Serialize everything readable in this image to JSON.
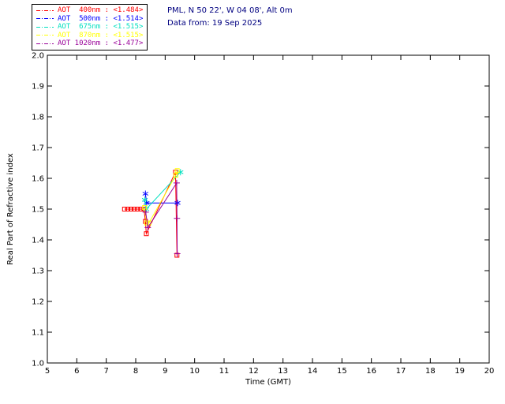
{
  "header": {
    "station_line": "PML, N 50 22', W 04 08', Alt 0m",
    "date_line": "Data from: 19 Sep 2025",
    "text_color": "#000080"
  },
  "chart_data": {
    "type": "scatter",
    "title": "",
    "xlabel": "Time (GMT)",
    "ylabel": "Real Part of Refractive index",
    "xlim": [
      5,
      20
    ],
    "ylim": [
      1.0,
      2.0
    ],
    "xticks": [
      5,
      6,
      7,
      8,
      9,
      10,
      11,
      12,
      13,
      14,
      15,
      16,
      17,
      18,
      19,
      20
    ],
    "ytick_labels": [
      "1.0",
      "1.1",
      "1.2",
      "1.3",
      "1.4",
      "1.5",
      "1.6",
      "1.7",
      "1.8",
      "1.9",
      "2.0"
    ],
    "grid": false,
    "legend_position": "outside-top-left",
    "axis_color": "#000000",
    "series": [
      {
        "name": "AOT 400nm",
        "mean_label": "<1.484>",
        "legend_label": "AOT  400nm : <1.484>",
        "color": "#ff0000",
        "marker": "square",
        "points": [
          [
            7.62,
            1.5
          ],
          [
            7.73,
            1.5
          ],
          [
            7.84,
            1.5
          ],
          [
            7.95,
            1.5
          ],
          [
            8.06,
            1.5
          ],
          [
            8.17,
            1.5
          ],
          [
            8.28,
            1.5
          ],
          [
            8.33,
            1.46
          ],
          [
            8.36,
            1.42
          ],
          [
            9.35,
            1.62
          ],
          [
            9.4,
            1.35
          ]
        ]
      },
      {
        "name": "AOT 500nm",
        "mean_label": "<1.514>",
        "legend_label": "AOT  500nm : <1.514>",
        "color": "#0000ff",
        "marker": "asterisk",
        "points": [
          [
            8.33,
            1.55
          ],
          [
            8.37,
            1.52
          ],
          [
            9.42,
            1.52
          ]
        ]
      },
      {
        "name": "AOT 675nm",
        "mean_label": "<1.515>",
        "legend_label": "AOT  675nm : <1.515>",
        "color": "#00e0c0",
        "marker": "asterisk",
        "points": [
          [
            8.31,
            1.53
          ],
          [
            8.36,
            1.5
          ],
          [
            9.52,
            1.62
          ]
        ]
      },
      {
        "name": "AOT 870nm",
        "mean_label": "<1.515>",
        "legend_label": "AOT  870nm : <1.515>",
        "color": "#ffff00",
        "marker": "square",
        "points": [
          [
            8.3,
            1.505
          ],
          [
            8.37,
            1.455
          ],
          [
            8.45,
            1.455
          ],
          [
            9.36,
            1.61
          ],
          [
            9.41,
            1.625
          ]
        ]
      },
      {
        "name": "AOT 1020nm",
        "mean_label": "<1.477>",
        "legend_label": "AOT 1020nm : <1.477>",
        "color": "#990099",
        "marker": "plus",
        "points": [
          [
            8.34,
            1.49
          ],
          [
            8.41,
            1.44
          ],
          [
            9.39,
            1.585
          ],
          [
            9.4,
            1.47
          ],
          [
            9.41,
            1.355
          ]
        ]
      }
    ]
  }
}
